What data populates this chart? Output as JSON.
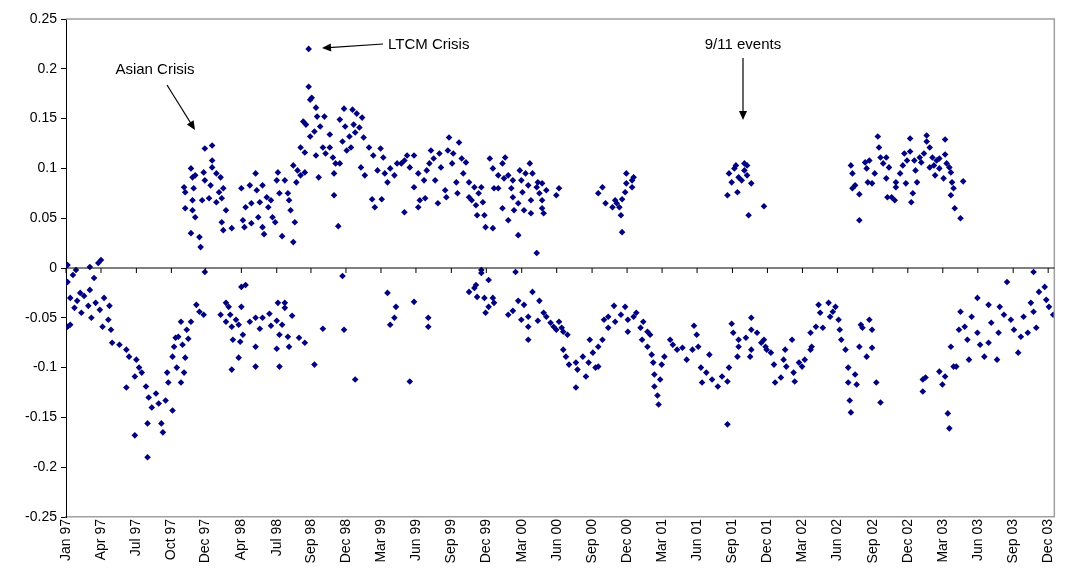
{
  "chart_data": {
    "type": "scatter",
    "marker": "diamond",
    "ylim": [
      -0.25,
      0.25
    ],
    "yticks": [
      0.25,
      0.2,
      0.15,
      0.1,
      0.05,
      0,
      -0.05,
      -0.1,
      -0.15,
      -0.2,
      -0.25
    ],
    "xlim": [
      "1997-01-01",
      "2004-01-15"
    ],
    "xticks": [
      {
        "value": "1997-01-01",
        "label": "Jan 97"
      },
      {
        "value": "1997-04-02",
        "label": "Apr 97"
      },
      {
        "value": "1997-07-03",
        "label": "Jul 97"
      },
      {
        "value": "1997-10-02",
        "label": "Oct 97"
      },
      {
        "value": "1997-12-30",
        "label": "Dec 97"
      },
      {
        "value": "1998-04-02",
        "label": "Apr 98"
      },
      {
        "value": "1998-07-03",
        "label": "Jul 98"
      },
      {
        "value": "1998-09-30",
        "label": "Sep 98"
      },
      {
        "value": "1998-12-30",
        "label": "Dec 98"
      },
      {
        "value": "1999-03-31",
        "label": "Mar 99"
      },
      {
        "value": "1999-06-30",
        "label": "Jun 99"
      },
      {
        "value": "1999-09-30",
        "label": "Sep 99"
      },
      {
        "value": "1999-12-30",
        "label": "Dec 99"
      },
      {
        "value": "2000-03-31",
        "label": "Mar 00"
      },
      {
        "value": "2000-06-30",
        "label": "Jun 00"
      },
      {
        "value": "2000-09-30",
        "label": "Sep 00"
      },
      {
        "value": "2000-12-30",
        "label": "Dec 00"
      },
      {
        "value": "2001-03-31",
        "label": "Mar 01"
      },
      {
        "value": "2001-06-30",
        "label": "Jun 01"
      },
      {
        "value": "2001-09-30",
        "label": "Sep 01"
      },
      {
        "value": "2001-12-30",
        "label": "Dec 01"
      },
      {
        "value": "2002-03-31",
        "label": "Mar 02"
      },
      {
        "value": "2002-06-30",
        "label": "Jun 02"
      },
      {
        "value": "2002-09-30",
        "label": "Sep 02"
      },
      {
        "value": "2002-12-30",
        "label": "Dec 02"
      },
      {
        "value": "2003-03-31",
        "label": "Mar 03"
      },
      {
        "value": "2003-06-30",
        "label": "Jun 03"
      },
      {
        "value": "2003-09-30",
        "label": "Sep 03"
      },
      {
        "value": "2003-12-30",
        "label": "Dec 03"
      }
    ],
    "annotations": [
      "Asian Crisis",
      "LTCM Crisis",
      "9/11 events"
    ],
    "series": [
      {
        "color": "#000080",
        "x": [
          "1997-01-05",
          "1997-01-01",
          "1997-01-05",
          "1997-01-19",
          "1997-01-27",
          "1997-03-04",
          "1997-03-26",
          "1997-04-02",
          "1997-03-15",
          "1997-01-12",
          "1997-01-23",
          "1997-01-30",
          "1997-02-10",
          "1997-02-17",
          "1997-02-28",
          "1997-03-08",
          "1997-03-19",
          "1997-03-30",
          "1997-04-10",
          "1997-04-21",
          "1997-04-24",
          "1997-02-07",
          "1997-03-04",
          "1997-01-05",
          "1997-01-12",
          "1997-04-06",
          "1997-04-28",
          "1997-05-01",
          "1997-05-20",
          "1997-06-07",
          "1997-06-14",
          "1997-07-03",
          "1997-07-10",
          "1997-06-29",
          "1997-06-07",
          "1997-07-17",
          "1997-07-28",
          "1997-08-04",
          "1997-08-12",
          "1997-08-01",
          "1997-06-29",
          "1997-08-01",
          "1997-08-23",
          "1997-08-30",
          "1997-09-06",
          "1997-09-10",
          "1997-09-17",
          "1997-10-05",
          "1997-09-24",
          "1997-09-21",
          "1997-10-05",
          "1997-10-09",
          "1997-10-13",
          "1997-10-20",
          "1997-10-16",
          "1997-10-27",
          "1997-11-04",
          "1997-11-07",
          "1997-10-31",
          "1997-11-11",
          "1997-10-27",
          "1997-11-22",
          "1997-11-15",
          "1997-12-06",
          "1997-12-14",
          "1997-12-25",
          "1997-12-28",
          "1998-02-07"
        ],
        "values": [
          0.003,
          -0.015,
          -0.014,
          -0.007,
          -0.002,
          0.001,
          0.005,
          0.008,
          -0.01,
          -0.03,
          -0.04,
          -0.033,
          -0.045,
          -0.028,
          -0.038,
          -0.05,
          -0.035,
          -0.042,
          -0.03,
          -0.052,
          -0.038,
          -0.025,
          -0.022,
          -0.059,
          -0.057,
          -0.059,
          -0.062,
          -0.075,
          -0.077,
          -0.082,
          -0.089,
          -0.092,
          -0.1,
          -0.109,
          -0.12,
          -0.105,
          -0.119,
          -0.13,
          -0.14,
          -0.156,
          -0.168,
          -0.19,
          -0.126,
          -0.136,
          -0.156,
          -0.165,
          -0.133,
          -0.143,
          -0.115,
          -0.105,
          -0.089,
          -0.079,
          -0.07,
          -0.069,
          -0.1,
          -0.115,
          -0.105,
          -0.09,
          -0.077,
          -0.062,
          -0.054,
          -0.054,
          -0.071,
          -0.037,
          -0.044,
          -0.047,
          -0.004,
          -0.047
        ]
      },
      {
        "color": "#000080",
        "x": [
          "1998-02-21",
          "1998-02-28",
          "1998-02-21",
          "1998-03-08",
          "1998-03-04",
          "1998-03-19",
          "1998-03-26",
          "1998-03-11",
          "1998-03-30",
          "1998-03-08",
          "1998-03-26",
          "1998-04-02",
          "1998-04-13",
          "1998-04-02",
          "1998-04-06",
          "1998-04-24",
          "1998-05-09",
          "1998-05-09",
          "1998-05-09",
          "1998-05-20",
          "1998-05-27",
          "1998-06-14",
          "1998-06-18",
          "1998-07-03",
          "1998-07-06",
          "1998-07-24",
          "1998-07-24",
          "1998-07-10",
          "1998-07-03",
          "1998-07-10",
          "1998-07-17",
          "1998-08-01",
          "1998-08-04",
          "1998-08-12",
          "1998-08-30",
          "1998-09-14",
          "1998-10-09",
          "1998-10-31",
          "1998-12-21",
          "1998-12-25",
          "1999-01-23",
          "1999-04-17",
          "1999-04-24",
          "1999-05-05",
          "1999-05-09",
          "1999-06-14",
          "1999-06-25",
          "1999-08-01",
          "1999-08-01"
        ],
        "values": [
          -0.035,
          -0.039,
          -0.054,
          -0.059,
          -0.047,
          -0.052,
          -0.057,
          -0.072,
          -0.074,
          -0.102,
          -0.09,
          -0.019,
          -0.017,
          -0.039,
          -0.067,
          -0.054,
          -0.079,
          -0.099,
          -0.05,
          -0.061,
          -0.05,
          -0.046,
          -0.058,
          -0.053,
          -0.035,
          -0.035,
          -0.04,
          -0.099,
          -0.081,
          -0.067,
          -0.057,
          -0.069,
          -0.079,
          -0.048,
          -0.07,
          -0.075,
          -0.097,
          -0.061,
          -0.008,
          -0.062,
          -0.112,
          -0.025,
          -0.057,
          -0.05,
          -0.039,
          -0.114,
          -0.034,
          -0.05,
          -0.059
        ]
      },
      {
        "color": "#000080",
        "x": [
          "1999-11-15",
          "1999-12-03",
          "1999-11-29",
          "1999-12-06",
          "1999-12-17",
          "1999-12-17",
          "1999-12-25",
          "1999-12-28",
          "2000-01-05",
          "2000-01-05",
          "2000-01-16",
          "2000-01-19",
          "2000-02-25",
          "2000-03-08",
          "2000-03-15",
          "2000-03-22",
          "2000-03-30",
          "2000-04-06",
          "2000-04-17",
          "2000-04-17",
          "2000-04-17",
          "2000-04-28",
          "2000-05-12",
          "2000-05-16",
          "2000-05-27",
          "2000-06-03",
          "2000-06-14",
          "2000-06-22",
          "2000-06-29",
          "2000-07-06",
          "2000-07-13",
          "2000-07-17",
          "2000-07-28",
          "2000-07-17",
          "2000-07-24",
          "2000-08-01",
          "2000-08-19",
          "2000-08-23",
          "2000-08-19",
          "2000-09-06",
          "2000-09-14",
          "2000-09-21",
          "2000-09-24",
          "2000-10-02",
          "2000-10-09",
          "2000-10-16",
          "2000-10-16",
          "2000-10-27",
          "2000-10-31",
          "2000-11-11",
          "2000-11-11",
          "2000-11-26",
          "2000-11-29",
          "2000-12-14",
          "2000-12-25",
          "2001-01-01",
          "2001-01-01",
          "2001-01-16"
        ],
        "values": [
          -0.024,
          -0.017,
          -0.02,
          -0.029,
          -0.002,
          -0.005,
          -0.03,
          -0.045,
          -0.012,
          -0.039,
          -0.03,
          -0.035,
          -0.047,
          -0.043,
          -0.004,
          -0.033,
          -0.052,
          -0.037,
          -0.049,
          -0.059,
          -0.072,
          -0.024,
          -0.053,
          -0.033,
          -0.045,
          -0.049,
          -0.055,
          -0.059,
          -0.062,
          -0.054,
          -0.06,
          -0.064,
          -0.067,
          -0.082,
          -0.089,
          -0.097,
          -0.095,
          -0.102,
          -0.12,
          -0.089,
          -0.109,
          -0.095,
          -0.072,
          -0.085,
          -0.1,
          -0.099,
          -0.079,
          -0.072,
          -0.052,
          -0.049,
          -0.06,
          -0.038,
          -0.054,
          -0.047,
          -0.039,
          -0.052,
          -0.064,
          -0.049
        ]
      },
      {
        "color": "#000080",
        "x": [
          "2001-01-23",
          "2001-02-03",
          "2001-02-10",
          "2001-02-07",
          "2001-02-21",
          "2001-02-28",
          "2001-02-21",
          "2001-03-04",
          "2001-03-08",
          "2001-03-11",
          "2001-03-11",
          "2001-03-19",
          "2001-03-22",
          "2001-03-26",
          "2001-03-30",
          "2001-04-06",
          "2001-04-21",
          "2001-04-28",
          "2001-05-09",
          "2001-05-23",
          "2001-06-03",
          "2001-06-18",
          "2001-06-22",
          "2001-06-29",
          "2001-07-03",
          "2001-07-10",
          "2001-07-13",
          "2001-07-24",
          "2001-08-01",
          "2001-08-08",
          "2001-08-23",
          "2001-09-03",
          "2001-09-17",
          "2001-09-21",
          "2001-09-17",
          "2001-09-28",
          "2001-10-02",
          "2001-10-13",
          "2001-10-16",
          "2001-11-04",
          "2001-11-18",
          "2001-11-18",
          "2001-10-16",
          "2001-11-15",
          "2001-11-18",
          "2001-12-03",
          "2001-12-14",
          "2001-12-21",
          "2001-12-25",
          "2001-12-28"
        ],
        "values": [
          -0.045,
          -0.06,
          -0.054,
          -0.072,
          -0.064,
          -0.067,
          -0.079,
          -0.087,
          -0.095,
          -0.107,
          -0.119,
          -0.128,
          -0.137,
          -0.112,
          -0.097,
          -0.089,
          -0.072,
          -0.077,
          -0.082,
          -0.08,
          -0.092,
          -0.082,
          -0.058,
          -0.067,
          -0.079,
          -0.1,
          -0.115,
          -0.105,
          -0.087,
          -0.112,
          -0.119,
          -0.109,
          -0.114,
          -0.1,
          -0.157,
          -0.056,
          -0.065,
          -0.089,
          -0.072,
          -0.07,
          -0.05,
          -0.082,
          -0.079,
          -0.089,
          -0.062,
          -0.065,
          -0.075,
          -0.072,
          -0.079,
          -0.082
        ]
      },
      {
        "color": "#000080",
        "x": [
          "2002-01-08",
          "2002-01-16",
          "2002-01-19",
          "2002-02-03",
          "2002-02-10",
          "2002-02-14",
          "2002-02-17",
          "2002-03-04",
          "2002-03-08",
          "2002-03-11",
          "2002-03-22",
          "2002-03-30",
          "2002-04-06",
          "2002-04-21",
          "2002-04-24",
          "2002-04-21",
          "2002-05-05",
          "2002-05-12",
          "2002-05-16",
          "2002-05-23",
          "2002-06-07",
          "2002-06-11",
          "2002-06-18",
          "2002-06-25",
          "2002-07-03",
          "2002-07-06",
          "2002-07-10",
          "2002-07-21",
          "2002-07-28",
          "2002-07-28",
          "2002-08-01",
          "2002-08-04",
          "2002-08-15",
          "2002-08-19",
          "2002-08-26",
          "2002-08-30",
          "2002-09-03",
          "2002-09-14",
          "2002-09-21",
          "2002-09-28",
          "2002-09-28",
          "2002-10-09",
          "2002-10-20"
        ],
        "values": [
          -0.085,
          -0.097,
          -0.115,
          -0.11,
          -0.092,
          -0.082,
          -0.099,
          -0.072,
          -0.105,
          -0.114,
          -0.095,
          -0.099,
          -0.092,
          -0.082,
          -0.079,
          -0.065,
          -0.059,
          -0.037,
          -0.045,
          -0.06,
          -0.035,
          -0.049,
          -0.044,
          -0.039,
          -0.052,
          -0.062,
          -0.072,
          -0.082,
          -0.1,
          -0.115,
          -0.133,
          -0.145,
          -0.107,
          -0.117,
          -0.079,
          -0.057,
          -0.06,
          -0.089,
          -0.052,
          -0.062,
          -0.08,
          -0.115,
          -0.135
        ]
      },
      {
        "color": "#000080",
        "x": [
          "2003-02-07",
          "2003-02-14",
          "2003-02-07",
          "2003-03-22",
          "2003-03-30",
          "2003-04-06",
          "2003-04-13",
          "2003-04-17",
          "2003-04-21",
          "2003-04-28",
          "2003-05-05",
          "2003-05-12",
          "2003-05-16",
          "2003-05-27",
          "2003-06-03",
          "2003-06-07",
          "2003-06-14",
          "2003-06-29",
          "2003-06-29",
          "2003-07-06",
          "2003-07-17",
          "2003-07-28",
          "2003-07-28",
          "2003-08-04",
          "2003-08-19",
          "2003-08-23",
          "2003-08-26",
          "2003-09-14",
          "2003-09-06",
          "2003-09-24",
          "2003-10-02",
          "2003-10-13",
          "2003-10-20",
          "2003-10-27",
          "2003-11-07",
          "2003-11-22",
          "2003-11-15",
          "2003-11-22",
          "2003-11-29",
          "2003-12-06",
          "2003-12-21",
          "2003-12-25",
          "2004-01-01",
          "2004-01-12"
        ],
        "values": [
          -0.112,
          -0.11,
          -0.124,
          -0.104,
          -0.117,
          -0.109,
          -0.146,
          -0.161,
          -0.079,
          -0.099,
          -0.099,
          -0.062,
          -0.044,
          -0.059,
          -0.072,
          -0.092,
          -0.049,
          -0.03,
          -0.065,
          -0.077,
          -0.089,
          -0.037,
          -0.075,
          -0.055,
          -0.092,
          -0.065,
          -0.039,
          -0.014,
          -0.047,
          -0.052,
          -0.062,
          -0.085,
          -0.069,
          -0.049,
          -0.065,
          -0.004,
          -0.035,
          -0.044,
          -0.06,
          -0.024,
          -0.019,
          -0.032,
          -0.039,
          -0.047
        ]
      },
      {
        "color": "#000080",
        "x": [
          "1997-11-04",
          "1997-11-07",
          "1997-11-07",
          "1997-11-22",
          "1997-11-26",
          "1997-11-26",
          "1997-12-03",
          "1997-11-29",
          "1997-11-26",
          "1997-12-03",
          "1997-11-22",
          "1997-12-14",
          "1997-12-17",
          "1997-12-21",
          "1997-12-25",
          "1997-12-28",
          "1997-12-28",
          "1998-01-08",
          "1998-01-12",
          "1998-01-16",
          "1998-01-16",
          "1998-01-16",
          "1998-01-27",
          "1998-01-27",
          "1998-02-03",
          "1998-02-07",
          "1998-02-10",
          "1998-02-14",
          "1998-02-21",
          "1998-02-10",
          "1998-02-14",
          "1998-03-08",
          "1998-04-02",
          "1998-04-06",
          "1998-04-10",
          "1998-04-13",
          "1998-04-24",
          "1998-04-28",
          "1998-04-28",
          "1998-05-09",
          "1998-05-12",
          "1998-05-16",
          "1998-05-20",
          "1998-05-27",
          "1998-05-27",
          "1998-05-31",
          "1998-06-07",
          "1998-06-11",
          "1998-06-18",
          "1998-06-22",
          "1998-06-29",
          "1998-07-03",
          "1998-07-06",
          "1998-07-10",
          "1998-07-17",
          "1998-07-24",
          "1998-08-01",
          "1998-08-04",
          "1998-08-08",
          "1998-08-15",
          "1998-08-19",
          "1998-08-15",
          "1998-08-23",
          "1998-08-26",
          "1998-09-03",
          "1998-09-14",
          "1998-09-03",
          "1998-09-14"
        ],
        "values": [
          0.081,
          0.076,
          0.06,
          0.1,
          0.091,
          0.068,
          0.093,
          0.08,
          0.058,
          0.051,
          0.035,
          0.031,
          0.021,
          0.068,
          0.096,
          0.12,
          0.088,
          0.07,
          0.083,
          0.123,
          0.108,
          0.101,
          0.095,
          0.066,
          0.076,
          0.091,
          0.07,
          0.08,
          0.058,
          0.046,
          0.038,
          0.04,
          0.08,
          0.048,
          0.041,
          0.061,
          0.083,
          0.065,
          0.045,
          0.095,
          0.078,
          0.051,
          0.066,
          0.083,
          0.041,
          0.034,
          0.071,
          0.061,
          0.068,
          0.051,
          0.046,
          0.088,
          0.096,
          0.075,
          0.032,
          0.088,
          0.075,
          0.068,
          0.058,
          0.103,
          0.046,
          0.026,
          0.086,
          0.098,
          0.093,
          0.096,
          0.121,
          0.116
        ]
      },
      {
        "color": "#000080",
        "x": [
          "1998-09-10",
          "1998-09-17",
          "1998-09-24",
          "1998-09-24",
          "1998-09-28",
          "1998-10-02",
          "1998-09-28",
          "1998-10-09",
          "1998-10-13",
          "1998-10-16",
          "1998-10-13",
          "1998-10-20",
          "1998-10-24",
          "1998-10-31",
          "1998-11-04",
          "1998-11-07",
          "1998-11-18",
          "1998-11-18",
          "1998-11-26",
          "1998-11-29",
          "1998-11-29",
          "1998-12-03",
          "1998-12-10",
          "1998-12-14",
          "1998-12-14",
          "1998-12-21",
          "1998-12-25",
          "1998-12-28",
          "1999-01-01",
          "1999-01-08",
          "1999-01-12",
          "1999-01-16",
          "1999-01-19",
          "1999-01-23",
          "1999-01-27",
          "1999-02-03",
          "1999-02-07",
          "1999-02-10",
          "1999-02-14",
          "1999-02-17",
          "1999-02-28",
          "1999-03-08",
          "1999-03-11",
          "1999-03-15",
          "1999-03-22",
          "1999-03-30",
          "1999-04-02",
          "1999-04-06",
          "1999-04-10",
          "1999-04-17",
          "1999-04-24",
          "1999-05-05",
          "1999-05-12",
          "1999-05-23",
          "1999-05-31",
          "1999-05-31",
          "1999-06-07",
          "1999-06-14",
          "1999-06-25",
          "1999-06-25"
        ],
        "values": [
          0.147,
          0.144,
          0.22,
          0.182,
          0.169,
          0.171,
          0.132,
          0.137,
          0.161,
          0.152,
          0.113,
          0.091,
          0.142,
          0.121,
          0.152,
          0.115,
          0.134,
          0.121,
          0.111,
          0.095,
          0.073,
          0.105,
          0.042,
          0.149,
          0.105,
          0.127,
          0.16,
          0.142,
          0.118,
          0.132,
          0.121,
          0.159,
          0.144,
          0.136,
          0.155,
          0.141,
          0.101,
          0.151,
          0.131,
          0.093,
          0.121,
          0.069,
          0.113,
          0.061,
          0.098,
          0.12,
          0.069,
          0.111,
          0.095,
          0.086,
          0.1,
          0.093,
          0.105,
          0.105,
          0.056,
          0.108,
          0.113,
          0.101,
          0.081,
          0.113
        ]
      },
      {
        "color": "#000080",
        "x": [
          "1999-07-06",
          "1999-07-06",
          "1999-07-10",
          "1999-07-21",
          "1999-07-24",
          "1999-07-28",
          "1999-08-04",
          "1999-08-08",
          "1999-08-15",
          "1999-08-19",
          "1999-08-26",
          "1999-08-30",
          "1999-09-03",
          "1999-09-14",
          "1999-09-17",
          "1999-09-21",
          "1999-09-24",
          "1999-10-02",
          "1999-10-05",
          "1999-10-13",
          "1999-10-16",
          "1999-10-20",
          "1999-10-27",
          "1999-10-31",
          "1999-11-07",
          "1999-11-15",
          "1999-11-15",
          "1999-11-22",
          "1999-11-29",
          "1999-12-03",
          "1999-12-06",
          "1999-12-10",
          "1999-12-17",
          "1999-12-21",
          "1999-12-25",
          "1999-12-28",
          "2000-01-08",
          "2000-01-16",
          "2000-01-16",
          "2000-01-19",
          "2000-01-30",
          "2000-01-30",
          "2000-02-10",
          "2000-02-10",
          "2000-02-14",
          "2000-02-17",
          "2000-02-25",
          "2000-02-25",
          "2000-03-04",
          "2000-03-08",
          "2000-03-08",
          "2000-03-11",
          "2000-03-22",
          "2000-03-22",
          "2000-03-26",
          "2000-03-30",
          "2000-04-02",
          "2000-04-06",
          "2000-04-10",
          "2000-04-17",
          "2000-04-21",
          "2000-04-24",
          "2000-04-24",
          "2000-04-28",
          "2000-05-09",
          "2000-05-09",
          "2000-05-12",
          "2000-05-16",
          "2000-05-23",
          "2000-05-23",
          "2000-05-23",
          "2000-05-27",
          "2000-06-03",
          "2000-06-29",
          "2000-07-06"
        ],
        "values": [
          0.061,
          0.095,
          0.068,
          0.088,
          0.07,
          0.098,
          0.105,
          0.118,
          0.11,
          0.088,
          0.065,
          0.115,
          0.101,
          0.078,
          0.071,
          0.118,
          0.131,
          0.105,
          0.115,
          0.086,
          0.075,
          0.126,
          0.11,
          0.095,
          0.106,
          0.071,
          0.086,
          0.068,
          0.081,
          0.063,
          0.053,
          0.075,
          0.081,
          0.066,
          0.053,
          0.041,
          0.11,
          0.04,
          0.1,
          0.08,
          0.093,
          0.08,
          0.06,
          0.105,
          0.09,
          0.111,
          0.048,
          0.093,
          0.08,
          0.088,
          0.071,
          0.058,
          0.065,
          0.033,
          0.098,
          0.088,
          0.076,
          0.058,
          0.095,
          0.083,
          0.105,
          0.068,
          0.055,
          0.095,
          0.081,
          0.015,
          0.086,
          0.075,
          0.085,
          0.068,
          0.06,
          0.055,
          0.078,
          0.073,
          0.08
        ]
      },
      {
        "color": "#000080",
        "x": [
          "2000-10-16",
          "2000-10-27",
          "2000-11-04",
          "2000-11-22",
          "2000-11-29",
          "2000-12-03",
          "2000-12-10",
          "2000-12-14",
          "2000-12-17",
          "2000-12-17",
          "2000-12-25",
          "2000-12-28",
          "2000-12-28",
          "2001-01-12",
          "2001-01-12",
          "2001-01-16",
          "2001-09-17",
          "2001-09-21",
          "2001-09-28",
          "2001-10-05",
          "2001-10-09",
          "2001-10-13",
          "2001-10-16",
          "2001-10-24",
          "2001-10-31",
          "2001-10-31",
          "2001-11-07",
          "2001-11-07",
          "2001-11-11",
          "2001-11-18",
          "2001-12-21"
        ],
        "values": [
          0.075,
          0.081,
          0.065,
          0.061,
          0.068,
          0.065,
          0.061,
          0.053,
          0.069,
          0.036,
          0.076,
          0.085,
          0.095,
          0.081,
          0.088,
          0.091,
          0.073,
          0.095,
          0.086,
          0.1,
          0.103,
          0.076,
          0.091,
          0.088,
          0.098,
          0.105,
          0.093,
          0.103,
          0.053,
          0.085,
          0.062
        ]
      },
      {
        "color": "#000080",
        "x": [
          "2002-08-04",
          "2002-08-08",
          "2002-08-15",
          "2002-08-08",
          "2002-08-26",
          "2002-08-26",
          "2002-09-10",
          "2002-09-14",
          "2002-09-17",
          "2002-09-21",
          "2002-09-28",
          "2002-10-05",
          "2002-10-13",
          "2002-10-16",
          "2002-10-20",
          "2002-10-27",
          "2002-11-04",
          "2002-11-04",
          "2002-11-07",
          "2002-11-11",
          "2002-11-18",
          "2002-11-26",
          "2002-11-29",
          "2002-11-29",
          "2002-12-10",
          "2002-12-17",
          "2002-12-21",
          "2002-12-25",
          "2002-12-28",
          "2003-01-05",
          "2003-01-05",
          "2003-01-08",
          "2003-01-12",
          "2003-01-16",
          "2003-01-19",
          "2003-01-23",
          "2003-01-30",
          "2003-02-03",
          "2003-02-10",
          "2003-02-17",
          "2003-02-17",
          "2003-02-25",
          "2003-02-25",
          "2003-03-04",
          "2003-03-08",
          "2003-03-11",
          "2003-03-15",
          "2003-03-22",
          "2003-03-22",
          "2003-04-02",
          "2003-04-06",
          "2003-04-06",
          "2003-04-10",
          "2003-04-17",
          "2003-04-21",
          "2003-04-21",
          "2003-04-24",
          "2003-04-28",
          "2003-05-01",
          "2003-05-16",
          "2003-05-23"
        ],
        "values": [
          0.103,
          0.095,
          0.083,
          0.08,
          0.048,
          0.074,
          0.106,
          0.1,
          0.086,
          0.108,
          0.085,
          0.095,
          0.132,
          0.121,
          0.111,
          0.105,
          0.09,
          0.111,
          0.071,
          0.101,
          0.071,
          0.068,
          0.086,
          0.081,
          0.095,
          0.103,
          0.115,
          0.085,
          0.108,
          0.13,
          0.117,
          0.066,
          0.075,
          0.108,
          0.098,
          0.086,
          0.111,
          0.106,
          0.115,
          0.133,
          0.127,
          0.121,
          0.101,
          0.111,
          0.103,
          0.093,
          0.108,
          0.1,
          0.11,
          0.09,
          0.129,
          0.114,
          0.105,
          0.101,
          0.096,
          0.073,
          0.086,
          0.08,
          0.06,
          0.05,
          0.087
        ]
      }
    ]
  }
}
